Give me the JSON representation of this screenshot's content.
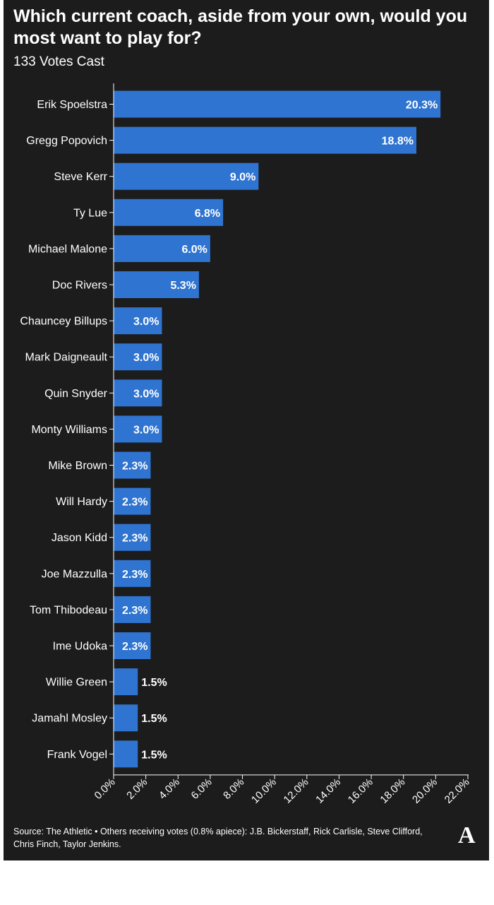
{
  "title": "Which current coach, aside from your own, would you most want to play for?",
  "subtitle": "133 Votes Cast",
  "source": "Source: The Athletic • Others receiving votes (0.8% apiece): J.B. Bickerstaff, Rick Carlisle, Steve Clifford, Chris Finch, Taylor Jenkins.",
  "logo_text": "A",
  "colors": {
    "background": "#1c1c1c",
    "bar": "#2f74d0",
    "text": "#ffffff"
  },
  "chart_data": {
    "type": "bar",
    "orientation": "horizontal",
    "categories": [
      "Erik Spoelstra",
      "Gregg Popovich",
      "Steve Kerr",
      "Ty Lue",
      "Michael Malone",
      "Doc Rivers",
      "Chauncey Billups",
      "Mark Daigneault",
      "Quin Snyder",
      "Monty Williams",
      "Mike Brown",
      "Will Hardy",
      "Jason Kidd",
      "Joe Mazzulla",
      "Tom Thibodeau",
      "Ime Udoka",
      "Willie Green",
      "Jamahl Mosley",
      "Frank Vogel"
    ],
    "values": [
      20.3,
      18.8,
      9.0,
      6.8,
      6.0,
      5.3,
      3.0,
      3.0,
      3.0,
      3.0,
      2.3,
      2.3,
      2.3,
      2.3,
      2.3,
      2.3,
      1.5,
      1.5,
      1.5
    ],
    "value_labels": [
      "20.3%",
      "18.8%",
      "9.0%",
      "6.8%",
      "6.0%",
      "5.3%",
      "3.0%",
      "3.0%",
      "3.0%",
      "3.0%",
      "2.3%",
      "2.3%",
      "2.3%",
      "2.3%",
      "2.3%",
      "2.3%",
      "1.5%",
      "1.5%",
      "1.5%"
    ],
    "xlim": [
      0,
      22
    ],
    "xticks": [
      "0.0%",
      "2.0%",
      "4.0%",
      "6.0%",
      "8.0%",
      "10.0%",
      "12.0%",
      "14.0%",
      "16.0%",
      "18.0%",
      "20.0%",
      "22.0%"
    ],
    "grid": false
  }
}
